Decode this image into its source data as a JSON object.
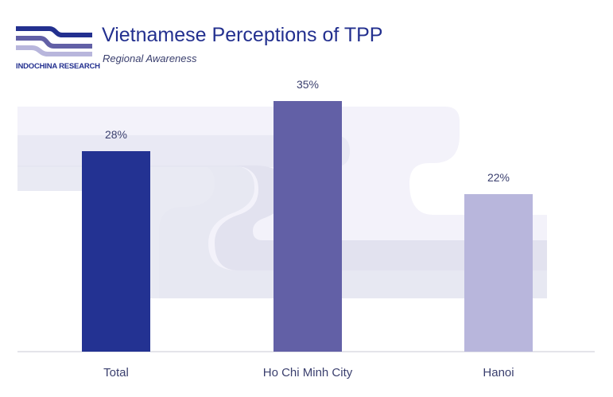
{
  "logo": {
    "name": "INDOCHINA RESEARCH",
    "icon": "wave-logo-icon"
  },
  "title": "Vietnamese Perceptions of TPP",
  "subtitle": "Regional Awareness",
  "chart_data": {
    "type": "bar",
    "title": "Vietnamese Perceptions of TPP",
    "subtitle": "Regional Awareness",
    "categories": [
      "Total",
      "Ho Chi Minh City",
      "Hanoi"
    ],
    "values": [
      28,
      35,
      22
    ],
    "labels": [
      "28%",
      "35%",
      "22%"
    ],
    "colors": [
      "#233292",
      "#6260a6",
      "#b8b6dc"
    ],
    "xlabel": "",
    "ylabel": "",
    "ylim": [
      0,
      40
    ],
    "grid": false,
    "legend": "none"
  }
}
